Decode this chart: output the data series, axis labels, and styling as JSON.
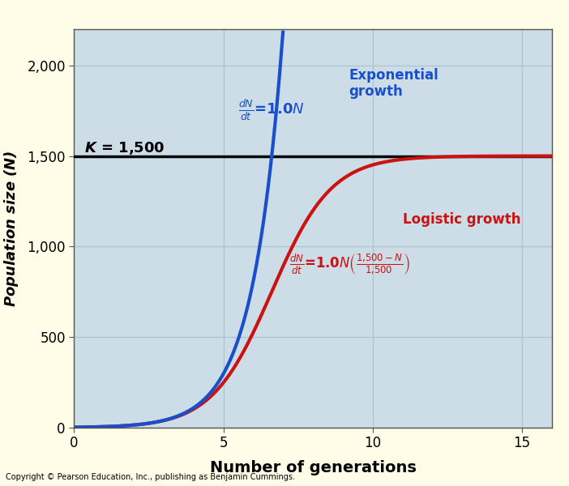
{
  "title": "",
  "xlabel": "Number of generations",
  "ylabel": "Population size (N)",
  "xlim": [
    0,
    16
  ],
  "ylim": [
    0,
    2200
  ],
  "yticks": [
    0,
    500,
    1000,
    1500,
    2000
  ],
  "xticks": [
    0,
    5,
    10,
    15
  ],
  "K": 1500,
  "r": 1.0,
  "N0": 2,
  "background_color": "#ccdde8",
  "outer_background": "#fffde7",
  "exponential_color": "#1a4fcc",
  "logistic_color": "#cc1111",
  "K_line_color": "#000000",
  "grid_color": "#b0c4d0",
  "copyright": "Copyright © Pearson Education, Inc., publishing as Benjamin Cummings."
}
